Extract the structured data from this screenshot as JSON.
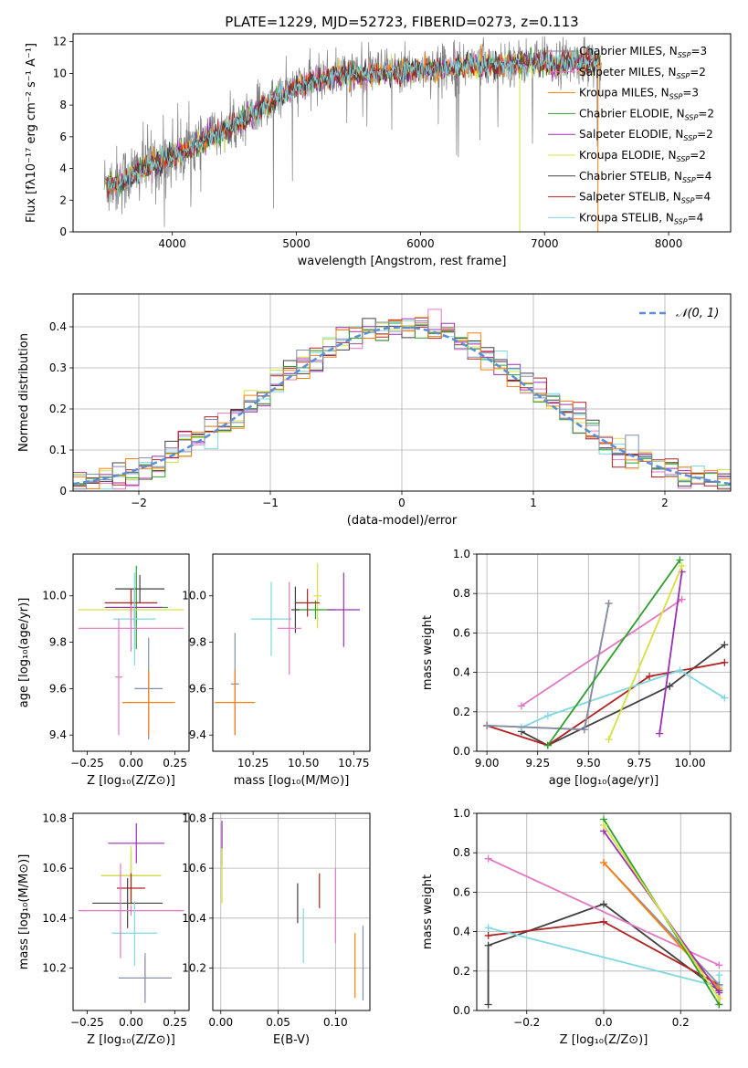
{
  "figure_title": "PLATE=1229, MJD=52723, FIBERID=0273, z=0.113",
  "colors": {
    "chabrier_miles": "#7f8fb0",
    "salpeter_miles": "#e377c2",
    "kroupa_miles": "#ff7f0e",
    "chabrier_elodie": "#2ca02c",
    "salpeter_elodie": "#9b30b0",
    "kroupa_elodie": "#d6e040",
    "chabrier_stelib": "#404040",
    "salpeter_stelib": "#b22222",
    "kroupa_stelib": "#7fd8e0",
    "data": "#808080",
    "normal": "#5b8ed6"
  },
  "legend_spectrum": [
    {
      "label": "Chabrier MILES, N",
      "sub": "SSP",
      "tail": "=3",
      "color": "#808080"
    },
    {
      "label": "Salpeter MILES, N",
      "sub": "SSP",
      "tail": "=2",
      "color": "#e377c2"
    },
    {
      "label": "Kroupa MILES, N",
      "sub": "SSP",
      "tail": "=3",
      "color": "#ff7f0e"
    },
    {
      "label": "Chabrier ELODIE, N",
      "sub": "SSP",
      "tail": "=2",
      "color": "#2ca02c"
    },
    {
      "label": "Salpeter ELODIE, N",
      "sub": "SSP",
      "tail": "=2",
      "color": "#9b30b0"
    },
    {
      "label": "Kroupa ELODIE, N",
      "sub": "SSP",
      "tail": "=2",
      "color": "#d6e040"
    },
    {
      "label": "Chabrier STELIB, N",
      "sub": "SSP",
      "tail": "=4",
      "color": "#404040"
    },
    {
      "label": "Salpeter STELIB, N",
      "sub": "SSP",
      "tail": "=4",
      "color": "#b22222"
    },
    {
      "label": "Kroupa STELIB, N",
      "sub": "SSP",
      "tail": "=4",
      "color": "#7fd8e0"
    }
  ],
  "chart_data": [
    {
      "type": "line",
      "xlabel": "wavelength [Angstrom, rest frame]",
      "ylabel": "Flux [fλ10⁻¹⁷ erg cm⁻² s⁻¹ A⁻¹]",
      "xlim": [
        3200,
        8500
      ],
      "ylim": [
        0,
        12.5
      ],
      "xticks": [
        4000,
        5000,
        6000,
        7000,
        8000
      ],
      "yticks": [
        0,
        2,
        4,
        6,
        8,
        10,
        12
      ],
      "continuum": {
        "x": [
          3450,
          3600,
          3800,
          4000,
          4200,
          4500,
          4800,
          5000,
          5300,
          5600,
          6000,
          6400,
          6800,
          7200,
          7600,
          8000,
          8300
        ],
        "y": [
          3.0,
          3.3,
          4.2,
          4.8,
          5.6,
          6.8,
          8.3,
          9.2,
          9.9,
          10.1,
          10.3,
          10.6,
          10.7,
          10.8,
          10.7,
          10.6,
          10.5
        ]
      }
    },
    {
      "type": "bar",
      "xlabel": "(data-model)/error",
      "ylabel": "Normed distribution",
      "xlim": [
        -2.5,
        2.5
      ],
      "ylim": [
        0,
        0.48
      ],
      "xticks": [
        -2,
        -1,
        0,
        1,
        2
      ],
      "yticks": [
        0.0,
        0.1,
        0.2,
        0.3,
        0.4
      ],
      "bin_width": 0.1,
      "legend": "𝒩(0, 1)",
      "bins_center": [
        -2.45,
        -2.35,
        -2.25,
        -2.15,
        -2.05,
        -1.95,
        -1.85,
        -1.75,
        -1.65,
        -1.55,
        -1.45,
        -1.35,
        -1.25,
        -1.15,
        -1.05,
        -0.95,
        -0.85,
        -0.75,
        -0.65,
        -0.55,
        -0.45,
        -0.35,
        -0.25,
        -0.15,
        -0.05,
        0.05,
        0.15,
        0.25,
        0.35,
        0.45,
        0.55,
        0.65,
        0.75,
        0.85,
        0.95,
        1.05,
        1.15,
        1.25,
        1.35,
        1.45,
        1.55,
        1.65,
        1.75,
        1.85,
        1.95,
        2.05,
        2.15,
        2.25,
        2.35,
        2.45
      ]
    },
    {
      "type": "scatter",
      "xlabel": "Z [log₁₀(Z/Z⊙)]",
      "ylabel": "age  [log₁₀(age/yr)]",
      "xlim": [
        -0.33,
        0.33
      ],
      "ylim": [
        9.33,
        10.18
      ],
      "xticks": [
        -0.25,
        0.0,
        0.25
      ],
      "xticklabels": [
        "−0.25",
        "0.00",
        "0.25"
      ],
      "yticks": [
        9.4,
        9.6,
        9.8,
        10.0
      ],
      "yticklabels": [
        "9.4",
        "9.6",
        "9.8",
        "10.0"
      ],
      "points": [
        {
          "x": 0.03,
          "xerr": 0.18,
          "y": 9.95,
          "yerr": 0.18,
          "c": "#2ca02c"
        },
        {
          "x": 0.0,
          "xerr": 0.3,
          "y": 9.94,
          "yerr": 0.06,
          "c": "#d6e040"
        },
        {
          "x": 0.02,
          "xerr": 0.16,
          "y": 9.95,
          "yerr": 0.08,
          "c": "#9b30b0"
        },
        {
          "x": 0.05,
          "xerr": 0.14,
          "y": 10.03,
          "yerr": 0.06,
          "c": "#404040"
        },
        {
          "x": 0.0,
          "xerr": 0.15,
          "y": 9.97,
          "yerr": 0.06,
          "c": "#b22222"
        },
        {
          "x": 0.02,
          "xerr": 0.12,
          "y": 9.9,
          "yerr": 0.2,
          "c": "#7fd8e0"
        },
        {
          "x": 0.0,
          "xerr": 0.3,
          "y": 9.86,
          "yerr": 0.1,
          "c": "#e377c2"
        },
        {
          "x": 0.1,
          "xerr": 0.08,
          "y": 9.6,
          "yerr": 0.22,
          "c": "#7f8fb0"
        },
        {
          "x": 0.1,
          "xerr": 0.15,
          "y": 9.54,
          "yerr": 0.14,
          "c": "#ff7f0e"
        },
        {
          "x": -0.07,
          "xerr": 0.02,
          "y": 9.65,
          "yerr": 0.25,
          "c": "#e377c2"
        }
      ]
    },
    {
      "type": "scatter",
      "xlabel": "mass [log₁₀(M/M⊙)]",
      "ylabel": "",
      "xlim": [
        10.05,
        10.83
      ],
      "ylim": [
        9.33,
        10.18
      ],
      "xticks": [
        10.25,
        10.5,
        10.75
      ],
      "xticklabels": [
        "10.25",
        "10.50",
        "10.75"
      ],
      "yticks": [
        9.4,
        9.6,
        9.8,
        10.0
      ],
      "yticklabels": [
        "9.4",
        "9.6",
        "9.8",
        "10.0"
      ],
      "points": [
        {
          "x": 10.57,
          "xerr": 0.02,
          "y": 10.0,
          "yerr": 0.14,
          "c": "#d6e040"
        },
        {
          "x": 10.56,
          "xerr": 0.1,
          "y": 9.94,
          "yerr": 0.04,
          "c": "#2ca02c"
        },
        {
          "x": 10.7,
          "xerr": 0.08,
          "y": 9.94,
          "yerr": 0.16,
          "c": "#9b30b0"
        },
        {
          "x": 10.46,
          "xerr": 0.02,
          "y": 9.94,
          "yerr": 0.1,
          "c": "#404040"
        },
        {
          "x": 10.52,
          "xerr": 0.06,
          "y": 9.97,
          "yerr": 0.06,
          "c": "#b22222"
        },
        {
          "x": 10.34,
          "xerr": 0.1,
          "y": 9.9,
          "yerr": 0.16,
          "c": "#7fd8e0"
        },
        {
          "x": 10.43,
          "xerr": 0.06,
          "y": 9.86,
          "yerr": 0.2,
          "c": "#e377c2"
        },
        {
          "x": 10.16,
          "xerr": 0.02,
          "y": 9.62,
          "yerr": 0.22,
          "c": "#7f8fb0"
        },
        {
          "x": 10.16,
          "xerr": 0.1,
          "y": 9.54,
          "yerr": 0.14,
          "c": "#ff7f0e"
        }
      ]
    },
    {
      "type": "line",
      "xlabel": "age  [log₁₀(age/yr)]",
      "ylabel": "mass weight",
      "xlim": [
        8.95,
        10.2
      ],
      "ylim": [
        0,
        1.0
      ],
      "xticks": [
        9.0,
        9.25,
        9.5,
        9.75,
        10.0
      ],
      "xticklabels": [
        "9.00",
        "9.25",
        "9.50",
        "9.75",
        "10.00"
      ],
      "yticks": [
        0,
        0.2,
        0.4,
        0.6,
        0.8,
        1.0
      ],
      "yticklabels": [
        "0.0",
        "0.2",
        "0.4",
        "0.6",
        "0.8",
        "1.0"
      ],
      "series": [
        {
          "c": "#404040",
          "x": [
            9.17,
            9.3,
            9.9,
            10.17
          ],
          "y": [
            0.1,
            0.03,
            0.33,
            0.54
          ]
        },
        {
          "c": "#b22222",
          "x": [
            9.0,
            9.3,
            9.8,
            10.17
          ],
          "y": [
            0.13,
            0.03,
            0.38,
            0.45
          ]
        },
        {
          "c": "#7fd8e0",
          "x": [
            9.17,
            9.3,
            9.95,
            10.17
          ],
          "y": [
            0.12,
            0.18,
            0.41,
            0.27
          ]
        },
        {
          "c": "#e377c2",
          "x": [
            9.17,
            9.96
          ],
          "y": [
            0.23,
            0.77
          ]
        },
        {
          "c": "#ff7f0e",
          "x": [
            9.0,
            9.48,
            9.6
          ],
          "y": [
            0.13,
            0.11,
            0.75
          ]
        },
        {
          "c": "#7f8fb0",
          "x": [
            9.0,
            9.48,
            9.6
          ],
          "y": [
            0.13,
            0.11,
            0.75
          ]
        },
        {
          "c": "#2ca02c",
          "x": [
            9.3,
            9.95
          ],
          "y": [
            0.03,
            0.97
          ]
        },
        {
          "c": "#9b30b0",
          "x": [
            9.85,
            9.96
          ],
          "y": [
            0.09,
            0.91
          ]
        },
        {
          "c": "#d6e040",
          "x": [
            9.6,
            9.96
          ],
          "y": [
            0.06,
            0.94
          ]
        }
      ]
    },
    {
      "type": "scatter",
      "xlabel": "Z [log₁₀(Z/Z⊙)]",
      "ylabel": "mass [log₁₀(M/M⊙)]",
      "xlim": [
        -0.33,
        0.33
      ],
      "ylim": [
        10.03,
        10.82
      ],
      "xticks": [
        -0.25,
        0.0,
        0.25
      ],
      "xticklabels": [
        "−0.25",
        "0.00",
        "0.25"
      ],
      "yticks": [
        10.2,
        10.4,
        10.6,
        10.8
      ],
      "yticklabels": [
        "10.2",
        "10.4",
        "10.6",
        "10.8"
      ],
      "points": [
        {
          "x": 0.03,
          "xerr": 0.16,
          "y": 10.7,
          "yerr": 0.08,
          "c": "#9b30b0"
        },
        {
          "x": 0.0,
          "xerr": 0.17,
          "y": 10.57,
          "yerr": 0.1,
          "c": "#2ca02c"
        },
        {
          "x": 0.0,
          "xerr": 0.17,
          "y": 10.57,
          "yerr": 0.12,
          "c": "#d6e040"
        },
        {
          "x": 0.0,
          "xerr": 0.08,
          "y": 10.52,
          "yerr": 0.06,
          "c": "#b22222"
        },
        {
          "x": -0.02,
          "xerr": 0.2,
          "y": 10.46,
          "yerr": 0.1,
          "c": "#404040"
        },
        {
          "x": 0.0,
          "xerr": 0.3,
          "y": 10.43,
          "yerr": 0.02,
          "c": "#e377c2"
        },
        {
          "x": 0.02,
          "xerr": 0.13,
          "y": 10.34,
          "yerr": 0.13,
          "c": "#7fd8e0"
        },
        {
          "x": -0.06,
          "xerr": 0.03,
          "y": 10.43,
          "yerr": 0.19,
          "c": "#e377c2"
        },
        {
          "x": 0.08,
          "xerr": 0.15,
          "y": 10.16,
          "yerr": 0.08,
          "c": "#ff7f0e"
        },
        {
          "x": 0.08,
          "xerr": 0.15,
          "y": 10.16,
          "yerr": 0.1,
          "c": "#7f8fb0"
        }
      ]
    },
    {
      "type": "scatter",
      "xlabel": "E(B-V)",
      "ylabel": "",
      "xlim": [
        -0.007,
        0.13
      ],
      "ylim": [
        10.03,
        10.82
      ],
      "xticks": [
        0.0,
        0.05,
        0.1
      ],
      "xticklabels": [
        "0.00",
        "0.05",
        "0.10"
      ],
      "yticks": [
        10.2,
        10.4,
        10.6,
        10.8
      ],
      "yticklabels": [
        "10.2",
        "10.4",
        "10.6",
        "10.8"
      ],
      "points": [
        {
          "x": 0.001,
          "xerr": 0,
          "y": 10.7,
          "yerr": 0.09,
          "c": "#9b30b0"
        },
        {
          "x": 0.001,
          "xerr": 0,
          "y": 10.57,
          "yerr": 0.11,
          "c": "#d6e040"
        },
        {
          "x": 0.067,
          "xerr": 0,
          "y": 10.46,
          "yerr": 0.08,
          "c": "#404040"
        },
        {
          "x": 0.072,
          "xerr": 0,
          "y": 10.33,
          "yerr": 0.11,
          "c": "#7fd8e0"
        },
        {
          "x": 0.086,
          "xerr": 0,
          "y": 10.51,
          "yerr": 0.07,
          "c": "#b22222"
        },
        {
          "x": 0.1,
          "xerr": 0,
          "y": 10.45,
          "yerr": 0.15,
          "c": "#e377c2"
        },
        {
          "x": 0.117,
          "xerr": 0,
          "y": 10.21,
          "yerr": 0.13,
          "c": "#ff7f0e"
        },
        {
          "x": 0.124,
          "xerr": 0,
          "y": 10.22,
          "yerr": 0.15,
          "c": "#7f8fb0"
        }
      ]
    },
    {
      "type": "line",
      "xlabel": "Z [log₁₀(Z/Z⊙)]",
      "ylabel": "mass weight",
      "xlim": [
        -0.33,
        0.33
      ],
      "ylim": [
        0,
        1.0
      ],
      "xticks": [
        -0.2,
        0.0,
        0.2
      ],
      "xticklabels": [
        "−0.2",
        "0.0",
        "0.2"
      ],
      "yticks": [
        0,
        0.2,
        0.4,
        0.6,
        0.8,
        1.0
      ],
      "yticklabels": [
        "0.0",
        "0.2",
        "0.4",
        "0.6",
        "0.8",
        "1.0"
      ],
      "series": [
        {
          "c": "#404040",
          "x": [
            -0.3,
            -0.3,
            0.0,
            0.3
          ],
          "y": [
            0.03,
            0.33,
            0.54,
            0.1
          ]
        },
        {
          "c": "#b22222",
          "x": [
            -0.3,
            0.0,
            0.3,
            0.3
          ],
          "y": [
            0.38,
            0.45,
            0.13,
            0.03
          ]
        },
        {
          "c": "#7fd8e0",
          "x": [
            -0.3,
            0.3,
            0.3
          ],
          "y": [
            0.42,
            0.12,
            0.18
          ]
        },
        {
          "c": "#e377c2",
          "x": [
            -0.3,
            0.3
          ],
          "y": [
            0.77,
            0.23
          ]
        },
        {
          "c": "#7f8fb0",
          "x": [
            0.0,
            0.3
          ],
          "y": [
            0.75,
            0.13
          ]
        },
        {
          "c": "#ff7f0e",
          "x": [
            0.0,
            0.3
          ],
          "y": [
            0.75,
            0.11
          ]
        },
        {
          "c": "#2ca02c",
          "x": [
            0.0,
            0.3
          ],
          "y": [
            0.97,
            0.03
          ]
        },
        {
          "c": "#9b30b0",
          "x": [
            0.0,
            0.3
          ],
          "y": [
            0.91,
            0.09
          ]
        },
        {
          "c": "#d6e040",
          "x": [
            0.0,
            0.3
          ],
          "y": [
            0.94,
            0.06
          ]
        }
      ]
    }
  ]
}
